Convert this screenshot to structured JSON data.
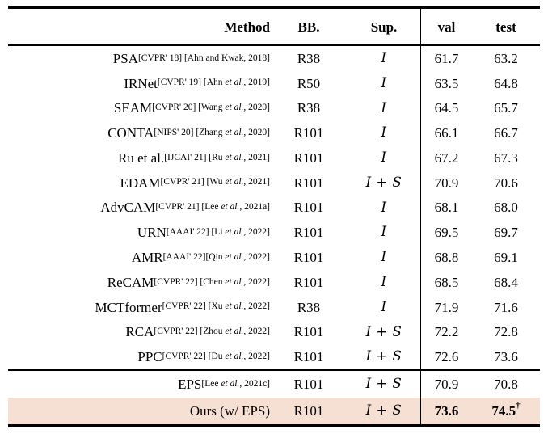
{
  "colors": {
    "highlight_row": "#f6e0d3",
    "rule": "#000000",
    "text": "#000000"
  },
  "table": {
    "header": {
      "method": "Method",
      "bb": "BB.",
      "sup": "Sup.",
      "val": "val",
      "test": "test"
    },
    "rows": [
      {
        "method": "PSA",
        "cite": [
          {
            "t": " [CVPR' 18] [Ahn and Kwak, 2018]",
            "i": false
          }
        ],
        "bb": "R38",
        "sup": "I",
        "val": "61.7",
        "test": "63.2",
        "bold": false,
        "highlight": false
      },
      {
        "method": "IRNet",
        "cite": [
          {
            "t": " [CVPR' 19] [Ahn ",
            "i": false
          },
          {
            "t": "et al.",
            "i": true
          },
          {
            "t": ", 2019]",
            "i": false
          }
        ],
        "bb": "R50",
        "sup": "I",
        "val": "63.5",
        "test": "64.8",
        "bold": false,
        "highlight": false
      },
      {
        "method": "SEAM",
        "cite": [
          {
            "t": " [CVPR' 20] [Wang ",
            "i": false
          },
          {
            "t": "et al.",
            "i": true
          },
          {
            "t": ", 2020]",
            "i": false
          }
        ],
        "bb": "R38",
        "sup": "I",
        "val": "64.5",
        "test": "65.7",
        "bold": false,
        "highlight": false
      },
      {
        "method": "CONTA",
        "cite": [
          {
            "t": " [NIPS' 20] [Zhang ",
            "i": false
          },
          {
            "t": "et al.",
            "i": true
          },
          {
            "t": ", 2020]",
            "i": false
          }
        ],
        "bb": "R101",
        "sup": "I",
        "val": "66.1",
        "test": "66.7",
        "bold": false,
        "highlight": false
      },
      {
        "method": "Ru et al.",
        "cite": [
          {
            "t": " [IJCAI' 21] [Ru ",
            "i": false
          },
          {
            "t": "et al.",
            "i": true
          },
          {
            "t": ", 2021]",
            "i": false
          }
        ],
        "bb": "R101",
        "sup": "I",
        "val": "67.2",
        "test": "67.3",
        "bold": false,
        "highlight": false
      },
      {
        "method": "EDAM",
        "cite": [
          {
            "t": " [CVPR' 21] [Wu ",
            "i": false
          },
          {
            "t": "et al.",
            "i": true
          },
          {
            "t": ", 2021]",
            "i": false
          }
        ],
        "bb": "R101",
        "sup": "I + S",
        "val": "70.9",
        "test": "70.6",
        "bold": false,
        "highlight": false
      },
      {
        "method": "AdvCAM",
        "cite": [
          {
            "t": " [CVPR' 21] [Lee ",
            "i": false
          },
          {
            "t": "et al.",
            "i": true
          },
          {
            "t": ", 2021a]",
            "i": false
          }
        ],
        "bb": "R101",
        "sup": "I",
        "val": "68.1",
        "test": "68.0",
        "bold": false,
        "highlight": false
      },
      {
        "method": "URN",
        "cite": [
          {
            "t": " [AAAI' 22] [Li ",
            "i": false
          },
          {
            "t": "et al.",
            "i": true
          },
          {
            "t": ", 2022]",
            "i": false
          }
        ],
        "bb": "R101",
        "sup": "I",
        "val": "69.5",
        "test": "69.7",
        "bold": false,
        "highlight": false
      },
      {
        "method": "AMR",
        "cite": [
          {
            "t": " [AAAI' 22][Qin ",
            "i": false
          },
          {
            "t": "et al.",
            "i": true
          },
          {
            "t": ", 2022]",
            "i": false
          }
        ],
        "bb": "R101",
        "sup": "I",
        "val": "68.8",
        "test": "69.1",
        "bold": false,
        "highlight": false
      },
      {
        "method": "ReCAM",
        "cite": [
          {
            "t": " [CVPR' 22] [Chen ",
            "i": false
          },
          {
            "t": "et al.",
            "i": true
          },
          {
            "t": ", 2022]",
            "i": false
          }
        ],
        "bb": "R101",
        "sup": "I",
        "val": "68.5",
        "test": "68.4",
        "bold": false,
        "highlight": false
      },
      {
        "method": "MCTformer",
        "cite": [
          {
            "t": " [CVPR' 22] [Xu ",
            "i": false
          },
          {
            "t": "et al.",
            "i": true
          },
          {
            "t": ", 2022]",
            "i": false
          }
        ],
        "bb": "R38",
        "sup": "I",
        "val": "71.9",
        "test": "71.6",
        "bold": false,
        "highlight": false
      },
      {
        "method": "RCA",
        "cite": [
          {
            "t": " [CVPR' 22] [Zhou ",
            "i": false
          },
          {
            "t": "et al.",
            "i": true
          },
          {
            "t": ", 2022]",
            "i": false
          }
        ],
        "bb": "R101",
        "sup": "I + S",
        "val": "72.2",
        "test": "72.8",
        "bold": false,
        "highlight": false
      },
      {
        "method": "PPC",
        "cite": [
          {
            "t": " [CVPR' 22] [Du ",
            "i": false
          },
          {
            "t": "et al.",
            "i": true
          },
          {
            "t": ", 2022]",
            "i": false
          }
        ],
        "bb": "R101",
        "sup": "I + S",
        "val": "72.6",
        "test": "73.6",
        "bold": false,
        "highlight": false
      }
    ],
    "footer_rows": [
      {
        "method": "EPS",
        "cite": [
          {
            "t": " [Lee ",
            "i": false
          },
          {
            "t": "et al.",
            "i": true
          },
          {
            "t": ", 2021c]",
            "i": false
          }
        ],
        "bb": "R101",
        "sup": "I + S",
        "val": "70.9",
        "test": "70.8",
        "bold": false,
        "highlight": false,
        "test_sup": ""
      },
      {
        "method": "Ours (w/ EPS)",
        "cite": [],
        "bb": "R101",
        "sup": "I + S",
        "val": "73.6",
        "test": "74.5",
        "bold": true,
        "highlight": true,
        "test_sup": "†"
      }
    ]
  }
}
